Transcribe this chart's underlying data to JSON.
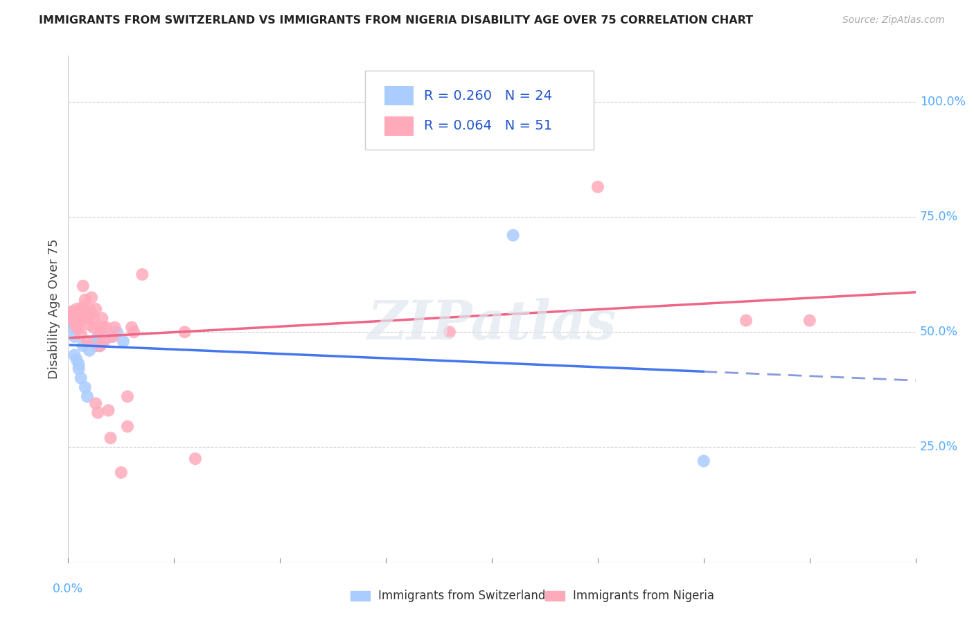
{
  "title": "IMMIGRANTS FROM SWITZERLAND VS IMMIGRANTS FROM NIGERIA DISABILITY AGE OVER 75 CORRELATION CHART",
  "source": "Source: ZipAtlas.com",
  "ylabel": "Disability Age Over 75",
  "xlim": [
    0.0,
    0.4
  ],
  "ylim": [
    0.0,
    1.1
  ],
  "ytick_vals": [
    0.25,
    0.5,
    0.75,
    1.0
  ],
  "ytick_labels": [
    "25.0%",
    "50.0%",
    "75.0%",
    "100.0%"
  ],
  "xtick_left_label": "0.0%",
  "switzerland_color": "#aaccff",
  "nigeria_color": "#ffaabb",
  "switzerland_line_color": "#4477ee",
  "nigeria_line_color": "#ee6688",
  "dash_line_color": "#8899dd",
  "R_switzerland": 0.26,
  "N_switzerland": 24,
  "R_nigeria": 0.064,
  "N_nigeria": 51,
  "watermark": "ZIPatlas",
  "right_label_color": "#55aaff",
  "legend_text_color": "#2255cc",
  "switzerland_x": [
    0.001,
    0.002,
    0.002,
    0.003,
    0.003,
    0.004,
    0.004,
    0.005,
    0.005,
    0.006,
    0.007,
    0.008,
    0.009,
    0.01,
    0.012,
    0.013,
    0.014,
    0.015,
    0.016,
    0.02,
    0.023,
    0.026,
    0.21,
    0.3
  ],
  "switzerland_y": [
    0.52,
    0.54,
    0.51,
    0.49,
    0.45,
    0.53,
    0.44,
    0.42,
    0.43,
    0.4,
    0.47,
    0.38,
    0.36,
    0.46,
    0.48,
    0.47,
    0.49,
    0.47,
    0.48,
    0.49,
    0.5,
    0.48,
    0.71,
    0.22
  ],
  "nigeria_x": [
    0.001,
    0.002,
    0.002,
    0.003,
    0.003,
    0.004,
    0.004,
    0.004,
    0.005,
    0.005,
    0.005,
    0.006,
    0.006,
    0.007,
    0.007,
    0.007,
    0.008,
    0.008,
    0.009,
    0.009,
    0.01,
    0.01,
    0.011,
    0.011,
    0.012,
    0.012,
    0.013,
    0.013,
    0.014,
    0.015,
    0.015,
    0.016,
    0.016,
    0.017,
    0.018,
    0.019,
    0.02,
    0.021,
    0.022,
    0.025,
    0.028,
    0.028,
    0.03,
    0.031,
    0.035,
    0.055,
    0.06,
    0.18,
    0.25,
    0.32,
    0.35
  ],
  "nigeria_y": [
    0.54,
    0.545,
    0.53,
    0.535,
    0.52,
    0.53,
    0.51,
    0.55,
    0.525,
    0.51,
    0.545,
    0.525,
    0.495,
    0.6,
    0.555,
    0.535,
    0.57,
    0.545,
    0.53,
    0.48,
    0.55,
    0.515,
    0.54,
    0.575,
    0.53,
    0.51,
    0.55,
    0.345,
    0.325,
    0.5,
    0.47,
    0.53,
    0.51,
    0.48,
    0.51,
    0.33,
    0.27,
    0.49,
    0.51,
    0.195,
    0.295,
    0.36,
    0.51,
    0.5,
    0.625,
    0.5,
    0.225,
    0.5,
    0.815,
    0.525,
    0.525
  ]
}
